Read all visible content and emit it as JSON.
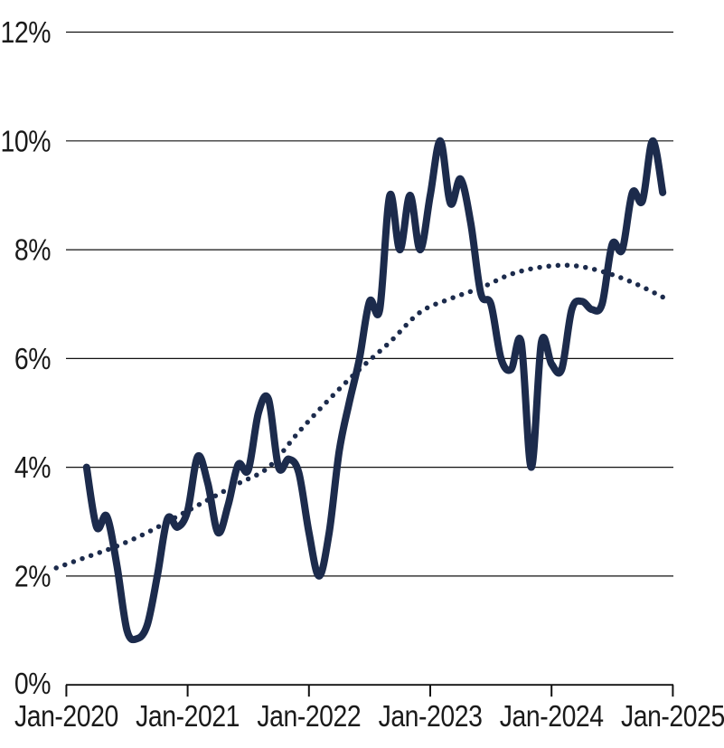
{
  "chart_data": {
    "type": "line",
    "title": "",
    "xlabel": "",
    "ylabel": "",
    "ylim": [
      0,
      12
    ],
    "grid": "horizontal",
    "legend": "none",
    "colors": {
      "series_navy": "#1c2b4c",
      "axis_black": "#1a1a1a"
    },
    "y_axis": {
      "labels": [
        "12%",
        "10%",
        "8%",
        "6%",
        "4%",
        "2%",
        "0%"
      ],
      "values": [
        12,
        10,
        8,
        6,
        4,
        2,
        0
      ]
    },
    "x_axis": {
      "labels": [
        "Jan-2020",
        "Jan-2021",
        "Jan-2022",
        "Jan-2023",
        "Jan-2024",
        "Jan-2025"
      ]
    },
    "series": [
      {
        "name": "monthly_series",
        "style": "solid",
        "color": "#1c2b4c",
        "frequency": "monthly",
        "start_month": "Mar-2020",
        "end_month": "Dec-2024",
        "unit": "%",
        "values": [
          4.0,
          2.9,
          3.1,
          2.2,
          1.0,
          0.85,
          1.1,
          2.0,
          3.05,
          2.9,
          3.2,
          4.2,
          3.7,
          2.8,
          3.3,
          4.05,
          3.95,
          5.0,
          5.25,
          4.0,
          4.15,
          3.9,
          2.8,
          2.0,
          2.8,
          4.3,
          5.2,
          6.0,
          7.05,
          6.9,
          9.0,
          8.0,
          9.0,
          8.0,
          9.0,
          10.0,
          8.85,
          9.3,
          8.5,
          7.2,
          7.0,
          6.0,
          5.8,
          6.3,
          4.0,
          6.3,
          5.9,
          5.8,
          6.9,
          7.05,
          6.9,
          7.0,
          8.1,
          8.0,
          9.05,
          8.9,
          10.0,
          9.05
        ]
      },
      {
        "name": "smoothed_trend",
        "style": "dotted",
        "color": "#1c2b4c",
        "frequency": "quarterly",
        "start_month": "Dec-2019",
        "end_month": "Dec-2024",
        "unit": "%",
        "values": [
          2.15,
          2.35,
          2.55,
          2.8,
          3.1,
          3.4,
          3.7,
          4.0,
          4.65,
          5.25,
          5.8,
          6.3,
          6.85,
          7.1,
          7.3,
          7.55,
          7.68,
          7.71,
          7.6,
          7.4,
          7.13
        ]
      }
    ]
  }
}
